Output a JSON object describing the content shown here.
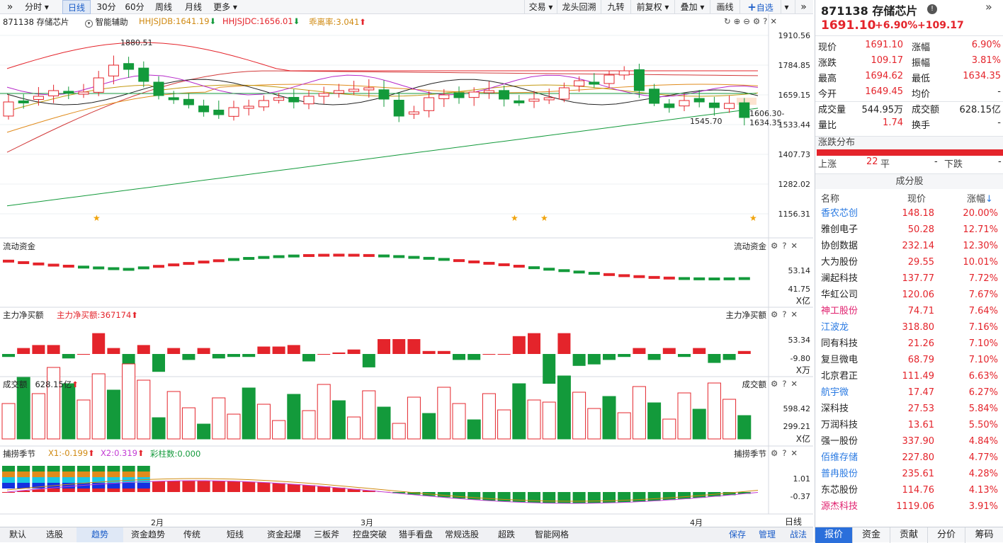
{
  "toolbar": {
    "expand_icon": "double-chevron-right-icon",
    "periods": [
      "分时",
      "日线",
      "30分",
      "60分",
      "周线",
      "月线",
      "更多"
    ],
    "selected_period": "日线",
    "right": [
      "交易",
      "龙头回溯",
      "九转",
      "前复权",
      "叠加",
      "画线",
      "自选"
    ],
    "collapse_icon": "double-chevron-right-icon"
  },
  "main_chart": {
    "stock_code_name": "871138 存储芯片",
    "assist_label": "智能辅助",
    "ind1": "HHJSJDB:1641.19",
    "ind2": "HHJSJDC:1656.01",
    "ind3": "乖离率:3.041",
    "high_mark": "1880.51",
    "low_mark": "1545.70",
    "last_mark": "1606.30-1634.35",
    "yaxis": [
      "1910.56",
      "1784.85",
      "1659.15",
      "1533.44",
      "1407.73",
      "1282.02",
      "1156.31"
    ]
  },
  "flow_panel": {
    "title": "流动资金",
    "title_right": "流动资金",
    "yaxis": [
      "53.14",
      "41.75"
    ],
    "unit": "X亿"
  },
  "main_net_panel": {
    "title": "主力净买额",
    "value": "主力净买额:367174",
    "title_right": "主力净买额",
    "yaxis": [
      "53.34",
      "-9.80"
    ],
    "unit": "X万"
  },
  "volume_panel": {
    "title": "成交额",
    "value": "628.15亿",
    "title_right": "成交额",
    "yaxis": [
      "598.42",
      "299.21"
    ],
    "unit": "X亿"
  },
  "catch_panel": {
    "title": "捕捞季节",
    "x1": "X1:-0.199",
    "x2": "X2:0.319",
    "bars": "彩柱数:0.000",
    "title_right": "捕捞季节",
    "yaxis": [
      "1.01",
      "-0.37"
    ]
  },
  "xaxis": {
    "labels": [
      "2月",
      "3月",
      "4月"
    ],
    "period_btn": "日线"
  },
  "bottom_tabs": [
    "默认",
    "选股",
    "趋势",
    "资金趋势",
    "传统",
    "短线",
    "资金起爆",
    "三板斧",
    "控盘突破",
    "猎手看盘",
    "常规选股",
    "超跌",
    "智能网格"
  ],
  "bottom_selected": "趋势",
  "bottom_right": [
    "保存",
    "管理",
    "战法"
  ],
  "quote": {
    "title": "871138 存储芯片",
    "price": "1691.10",
    "pct": "+6.90%",
    "chg": "+109.17",
    "rows": [
      [
        "现价",
        "1691.10",
        "涨幅",
        "6.90%"
      ],
      [
        "涨跌",
        "109.17",
        "振幅",
        "3.81%"
      ],
      [
        "最高",
        "1694.62",
        "最低",
        "1634.35"
      ],
      [
        "今开",
        "1649.45",
        "均价",
        "-"
      ],
      [
        "成交量",
        "544.95万",
        "成交额",
        "628.15亿"
      ],
      [
        "量比",
        "1.74",
        "换手",
        "-"
      ]
    ],
    "dist_title": "涨跌分布",
    "up_label": "上涨",
    "up_count": "22",
    "flat_label": "平",
    "flat_count": "-",
    "down_label": "下跌",
    "down_count": "-",
    "components_title": "成分股",
    "col_name": "名称",
    "col_price": "现价",
    "col_pct": "涨幅",
    "components": [
      {
        "name": "香农芯创",
        "price": "148.18",
        "pct": "20.00%",
        "color": "#2a7ae2"
      },
      {
        "name": "雅创电子",
        "price": "50.28",
        "pct": "12.71%",
        "color": "#222222"
      },
      {
        "name": "协创数据",
        "price": "232.14",
        "pct": "12.30%",
        "color": "#222222"
      },
      {
        "name": "大为股份",
        "price": "29.55",
        "pct": "10.01%",
        "color": "#222222"
      },
      {
        "name": "澜起科技",
        "price": "137.77",
        "pct": "7.72%",
        "color": "#222222"
      },
      {
        "name": "华虹公司",
        "price": "120.06",
        "pct": "7.67%",
        "color": "#222222"
      },
      {
        "name": "神工股份",
        "price": "74.71",
        "pct": "7.64%",
        "color": "#e0206e"
      },
      {
        "name": "江波龙",
        "price": "318.80",
        "pct": "7.16%",
        "color": "#2a7ae2"
      },
      {
        "name": "同有科技",
        "price": "21.26",
        "pct": "7.10%",
        "color": "#222222"
      },
      {
        "name": "复旦微电",
        "price": "68.79",
        "pct": "7.10%",
        "color": "#222222"
      },
      {
        "name": "北京君正",
        "price": "111.49",
        "pct": "6.63%",
        "color": "#222222"
      },
      {
        "name": "航宇微",
        "price": "17.47",
        "pct": "6.27%",
        "color": "#2a7ae2"
      },
      {
        "name": "深科技",
        "price": "27.53",
        "pct": "5.84%",
        "color": "#222222"
      },
      {
        "name": "万润科技",
        "price": "13.61",
        "pct": "5.50%",
        "color": "#222222"
      },
      {
        "name": "强一股份",
        "price": "337.90",
        "pct": "4.84%",
        "color": "#222222"
      },
      {
        "name": "佰维存储",
        "price": "227.80",
        "pct": "4.77%",
        "color": "#2a7ae2"
      },
      {
        "name": "普冉股份",
        "price": "235.61",
        "pct": "4.28%",
        "color": "#2a7ae2"
      },
      {
        "name": "东芯股份",
        "price": "114.76",
        "pct": "4.13%",
        "color": "#222222"
      },
      {
        "name": "源杰科技",
        "price": "1119.06",
        "pct": "3.91%",
        "color": "#e0206e"
      }
    ],
    "bottom_tabs": [
      "报价",
      "资金",
      "贡献",
      "分价",
      "筹码"
    ],
    "bottom_selected": "报价"
  },
  "colors": {
    "up": "#e4242b",
    "down": "#139a3b",
    "accent": "#2a6fdb"
  }
}
